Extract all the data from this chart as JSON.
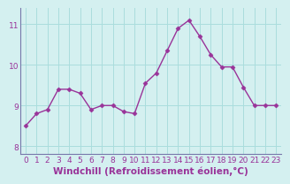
{
  "x": [
    0,
    1,
    2,
    3,
    4,
    5,
    6,
    7,
    8,
    9,
    10,
    11,
    12,
    13,
    14,
    15,
    16,
    17,
    18,
    19,
    20,
    21,
    22,
    23
  ],
  "y": [
    8.5,
    8.8,
    8.9,
    9.4,
    9.4,
    9.3,
    8.9,
    9.0,
    9.0,
    8.85,
    8.8,
    9.55,
    9.8,
    10.35,
    10.9,
    11.1,
    10.7,
    10.25,
    9.95,
    9.95,
    9.45,
    9.0,
    9.0,
    9.0
  ],
  "line_color": "#993399",
  "marker": "D",
  "marker_size": 2.5,
  "bg_color": "#d4f0f0",
  "grid_color": "#aadddd",
  "border_color": "#7777aa",
  "xlabel": "Windchill (Refroidissement éolien,°C)",
  "xlabel_color": "#993399",
  "tick_color": "#993399",
  "ylim": [
    7.8,
    11.4
  ],
  "xlim": [
    -0.5,
    23.5
  ],
  "yticks": [
    8,
    9,
    10,
    11
  ],
  "xticks": [
    0,
    1,
    2,
    3,
    4,
    5,
    6,
    7,
    8,
    9,
    10,
    11,
    12,
    13,
    14,
    15,
    16,
    17,
    18,
    19,
    20,
    21,
    22,
    23
  ],
  "xtick_labels": [
    "0",
    "1",
    "2",
    "3",
    "4",
    "5",
    "6",
    "7",
    "8",
    "9",
    "10",
    "11",
    "12",
    "13",
    "14",
    "15",
    "16",
    "17",
    "18",
    "19",
    "20",
    "21",
    "22",
    "23"
  ],
  "tick_fontsize": 6.5,
  "xlabel_fontsize": 7.5,
  "line_width": 1.0
}
